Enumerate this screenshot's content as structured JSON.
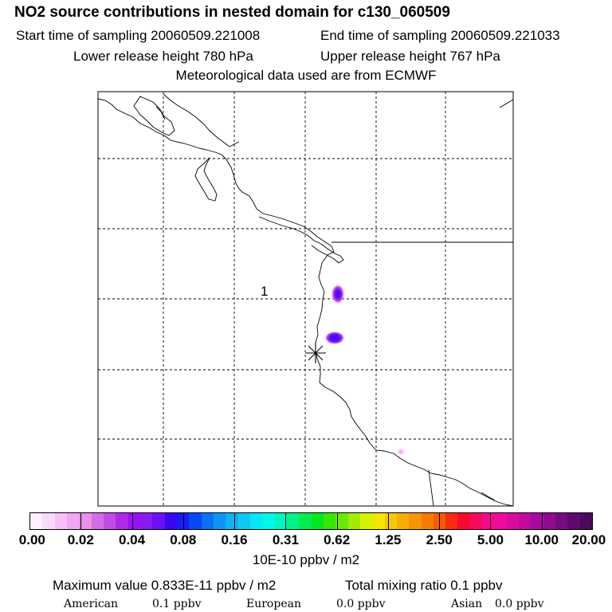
{
  "header": {
    "title": "NO2 source contributions in nested domain for c130_060509",
    "start_time": "Start time of sampling 20060509.221008",
    "end_time": "End time of sampling 20060509.221033",
    "lower_height": "Lower release height  780 hPa",
    "upper_height": "Upper release height  767 hPa",
    "met_data": "Meteorological data used are from ECMWF"
  },
  "map": {
    "contour_label": "1",
    "plumes": [
      {
        "name": "plume-north",
        "value": 0.08
      },
      {
        "name": "plume-middle",
        "value": 0.08
      },
      {
        "name": "plume-south",
        "value": 0.02
      }
    ],
    "release_marker": "release-point-asterisk"
  },
  "legend": {
    "ticks": [
      "0.00",
      "0.02",
      "0.04",
      "0.08",
      "0.16",
      "0.31",
      "0.62",
      "1.25",
      "2.50",
      "5.00",
      "10.00",
      "20.00"
    ],
    "colors": [
      "#fff0ff",
      "#fbd9fb",
      "#f6c0f6",
      "#f0a6f0",
      "#e890ec",
      "#d26ee6",
      "#c04ce6",
      "#b028ee",
      "#9a10f8",
      "#8a1cf0",
      "#6a10f6",
      "#3a08f0",
      "#1a1cf8",
      "#0848f8",
      "#0a70f6",
      "#0c96f4",
      "#10b2f2",
      "#0ec8f6",
      "#06e6f8",
      "#00f6e8",
      "#00f4c0",
      "#00f08a",
      "#00ec50",
      "#00e820",
      "#34e800",
      "#6ae800",
      "#a2ec00",
      "#d6f200",
      "#f4e400",
      "#f8c800",
      "#f8ae00",
      "#f89400",
      "#f87a00",
      "#f85c00",
      "#f82c10",
      "#f80830",
      "#f80a60",
      "#f8088e",
      "#f00a9e",
      "#d80aa0",
      "#c00aa0",
      "#a80aa0",
      "#900a92",
      "#780a80",
      "#600a70",
      "#4a0a5c"
    ],
    "units": "10E-10 ppbv / m2"
  },
  "footer": {
    "max_value": "Maximum value  0.833E-11 ppbv / m2",
    "total_mix": "Total mixing ratio       0.1 ppbv",
    "american_label": "American",
    "american_value": "0.1 ppbv",
    "european_label": "European",
    "european_value": "0.0 ppbv",
    "asian_label": "Asian",
    "asian_value": "0.0 ppbv"
  }
}
